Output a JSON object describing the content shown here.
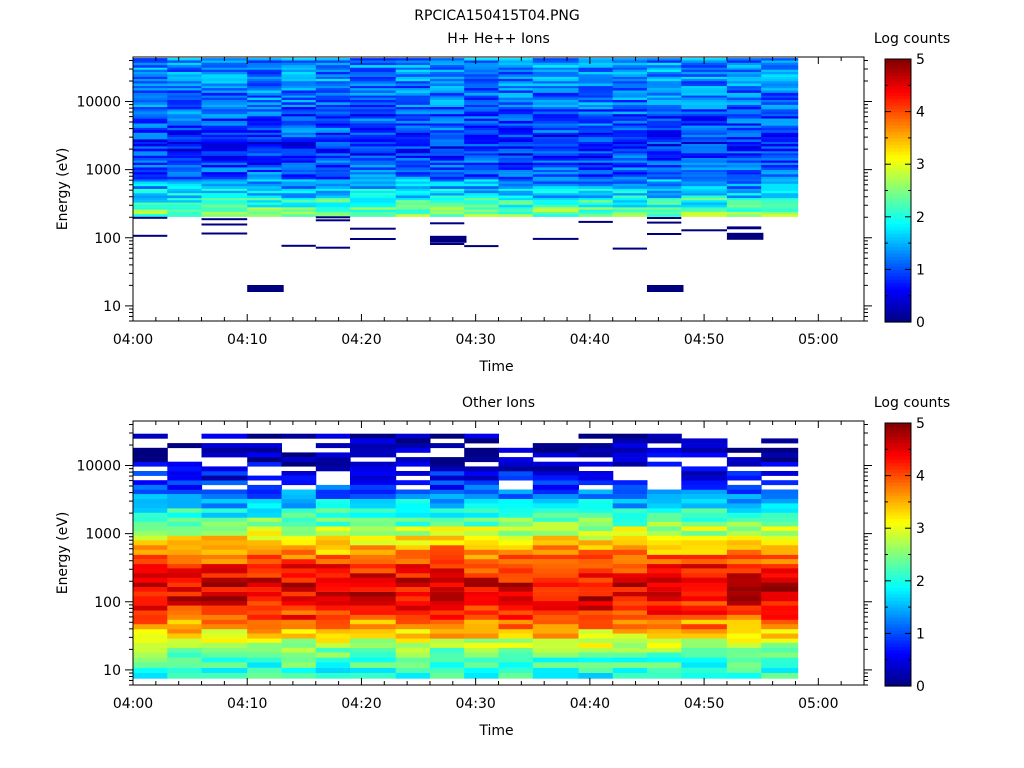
{
  "figure": {
    "title": "RPCICA150415T04.PNG"
  },
  "colorbar": {
    "label": "Log counts",
    "ticks": [
      "0",
      "1",
      "2",
      "3",
      "4",
      "5"
    ],
    "colors": [
      "#00007f",
      "#0000ff",
      "#007fff",
      "#00ffff",
      "#7fff7f",
      "#ffff00",
      "#ff7f00",
      "#ff0000",
      "#7f0000"
    ]
  },
  "axes": {
    "xlabel": "Time",
    "ylabel": "Energy (eV)",
    "xticks": [
      "04:00",
      "04:10",
      "04:20",
      "04:30",
      "04:40",
      "04:50",
      "05:00"
    ],
    "yticks": [
      "10",
      "100",
      "1000",
      "10000"
    ]
  },
  "chart_data": [
    {
      "type": "heatmap",
      "title": "H+ He++ Ions",
      "xlabel": "Time",
      "ylabel": "Energy (eV)",
      "x": [
        "04:00",
        "04:03",
        "04:06",
        "04:10",
        "04:13",
        "04:16",
        "04:19",
        "04:23",
        "04:26",
        "04:29",
        "04:32",
        "04:35",
        "04:39",
        "04:42",
        "04:45",
        "04:48",
        "04:52",
        "04:55"
      ],
      "xlim": [
        "04:00",
        "05:04"
      ],
      "ylim": [
        6,
        45000
      ],
      "yscale": "log",
      "colorbar_label": "Log counts",
      "zlim": [
        0,
        5
      ],
      "energy_bands_eV": [
        240,
        330,
        450,
        620,
        850,
        1170,
        1600,
        2200,
        3000,
        4100,
        5600,
        7700,
        10500,
        14500,
        20000,
        27000,
        37000
      ],
      "z_profile_log_counts": [
        2.4,
        2.0,
        1.7,
        1.4,
        1.1,
        1.0,
        0.9,
        0.8,
        0.9,
        1.0,
        1.0,
        1.1,
        1.2,
        1.2,
        1.3,
        1.3,
        1.3
      ],
      "low_energy_sparse_counts": [
        {
          "time": "04:10",
          "energy_eV": 18,
          "log_counts": 0
        },
        {
          "time": "04:45",
          "energy_eV": 18,
          "log_counts": 0
        },
        {
          "time": "04:26",
          "energy_eV": 95,
          "log_counts": 0
        },
        {
          "time": "04:52",
          "energy_eV": 105,
          "log_counts": 0
        }
      ]
    },
    {
      "type": "heatmap",
      "title": "Other Ions",
      "xlabel": "Time",
      "ylabel": "Energy (eV)",
      "x": [
        "04:00",
        "04:03",
        "04:06",
        "04:10",
        "04:13",
        "04:16",
        "04:19",
        "04:23",
        "04:26",
        "04:29",
        "04:32",
        "04:35",
        "04:39",
        "04:42",
        "04:45",
        "04:48",
        "04:52",
        "04:55"
      ],
      "xlim": [
        "04:00",
        "05:04"
      ],
      "ylim": [
        6,
        45000
      ],
      "yscale": "log",
      "colorbar_label": "Log counts",
      "zlim": [
        0,
        5
      ],
      "energy_bands_eV": [
        9,
        13,
        18,
        25,
        34,
        47,
        64,
        88,
        120,
        165,
        225,
        310,
        420,
        580,
        800,
        1100,
        1500,
        2000,
        2800,
        3800,
        5200,
        7100,
        9700,
        13300,
        18200,
        25000
      ],
      "z_profile_log_counts": [
        2.0,
        2.2,
        2.5,
        2.9,
        3.3,
        3.7,
        4.1,
        4.3,
        4.5,
        4.5,
        4.4,
        4.2,
        3.9,
        3.6,
        3.2,
        2.8,
        2.4,
        2.0,
        1.6,
        1.2,
        0.9,
        0.6,
        0.4,
        0.3,
        0.2,
        0.1
      ]
    }
  ]
}
